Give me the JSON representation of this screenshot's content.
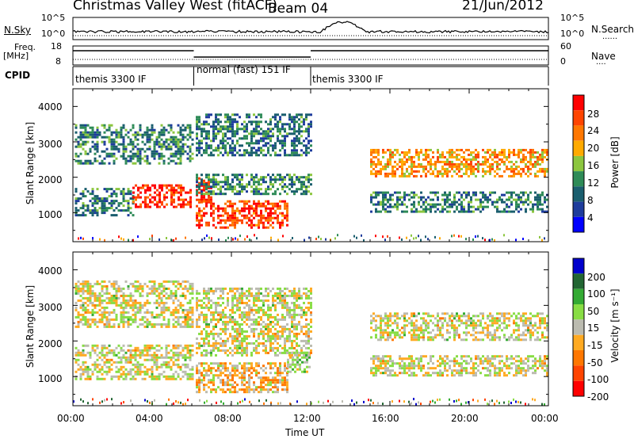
{
  "header": {
    "station_title": "Christmas Valley West (fitACF)",
    "beam": "Beam 04",
    "date": "21/Jun/2012"
  },
  "summary": {
    "nsky_label": "N.Sky",
    "nsearch_label": "N.Search",
    "noise_ticks_left": [
      "10^5",
      "10^0"
    ],
    "noise_ticks_right": [
      "10^5",
      "10^0"
    ],
    "freq_label": "Freq.",
    "freq_unit": "[MHz]",
    "freq_ticks": [
      "18",
      "8"
    ],
    "nave_label": "Nave",
    "nave_ticks": [
      "60",
      "0"
    ],
    "cpid_label": "CPID",
    "cpid_segments": [
      {
        "label": "themis 3300 IF",
        "start_hour": 0.0,
        "end_hour": 6.1
      },
      {
        "label": "normal (fast) 151 IF",
        "start_hour": 6.1,
        "end_hour": 12.0
      },
      {
        "label": "themis 3300 IF",
        "start_hour": 12.0,
        "end_hour": 24.0
      }
    ]
  },
  "axes": {
    "ylabel": "Slant Range [km]",
    "xlabel": "Time UT",
    "x_ticks": [
      "00:00",
      "04:00",
      "08:00",
      "12:00",
      "16:00",
      "20:00",
      "00:00"
    ],
    "y_ticks": [
      "1000",
      "2000",
      "3000",
      "4000"
    ]
  },
  "power_colorbar": {
    "label": "Power [dB]",
    "ticks": [
      "28",
      "24",
      "20",
      "16",
      "12",
      "8",
      "4"
    ],
    "colors": [
      "#ff0000",
      "#ff4400",
      "#ff7700",
      "#ffaa00",
      "#8cc63f",
      "#2e8b57",
      "#1a5e6e",
      "#1e3c9c",
      "#0000ff"
    ]
  },
  "velocity_colorbar": {
    "label": "Velocity [m s⁻¹]",
    "ticks": [
      "200",
      "100",
      "50",
      "15",
      "-15",
      "-50",
      "-100",
      "-200"
    ],
    "colors": [
      "#0000cc",
      "#226633",
      "#33aa33",
      "#88dd44",
      "#bbbbb0",
      "#ffaa22",
      "#ff7700",
      "#ff4400",
      "#ff0000"
    ]
  },
  "chart_data": [
    {
      "type": "heatmap",
      "title": "Power",
      "xlabel": "Time UT",
      "ylabel": "Slant Range [km]",
      "xlim": [
        0,
        24
      ],
      "ylim": [
        180,
        4500
      ],
      "zlabel": "Power [dB]",
      "zlim": [
        0,
        30
      ],
      "regions": [
        {
          "t0": 0.1,
          "t1": 6.0,
          "r0": 2400,
          "r1": 3500,
          "z": 10
        },
        {
          "t0": 0.1,
          "t1": 3.0,
          "r0": 900,
          "r1": 1700,
          "z": 10
        },
        {
          "t0": 3.0,
          "t1": 6.0,
          "r0": 1150,
          "r1": 1800,
          "z": 27
        },
        {
          "t0": 6.2,
          "t1": 7.0,
          "r0": 1300,
          "r1": 2000,
          "z": 28
        },
        {
          "t0": 6.2,
          "t1": 10.8,
          "r0": 550,
          "r1": 1350,
          "z": 25
        },
        {
          "t0": 6.2,
          "t1": 12.0,
          "r0": 1500,
          "r1": 2100,
          "z": 11
        },
        {
          "t0": 6.2,
          "t1": 12.0,
          "r0": 2600,
          "r1": 3800,
          "z": 9
        },
        {
          "t0": 15.0,
          "t1": 24.0,
          "r0": 1050,
          "r1": 1600,
          "z": 10
        },
        {
          "t0": 15.0,
          "t1": 24.0,
          "r0": 2000,
          "r1": 2800,
          "z": 20
        }
      ]
    },
    {
      "type": "heatmap",
      "title": "Velocity",
      "xlabel": "Time UT",
      "ylabel": "Slant Range [km]",
      "xlim": [
        0,
        24
      ],
      "ylim": [
        180,
        4500
      ],
      "zlabel": "Velocity [m s^-1]",
      "zlim": [
        -250,
        250
      ],
      "regions": [
        {
          "t0": 0.1,
          "t1": 6.0,
          "r0": 2400,
          "r1": 3700,
          "z": 0
        },
        {
          "t0": 0.1,
          "t1": 6.0,
          "r0": 900,
          "r1": 1900,
          "z": 0
        },
        {
          "t0": 6.2,
          "t1": 10.8,
          "r0": 550,
          "r1": 1400,
          "z": -40
        },
        {
          "t0": 10.8,
          "t1": 12.0,
          "r0": 1100,
          "r1": 1700,
          "z": 40
        },
        {
          "t0": 6.2,
          "t1": 12.0,
          "r0": 1600,
          "r1": 3500,
          "z": 0
        },
        {
          "t0": 15.0,
          "t1": 24.0,
          "r0": 1050,
          "r1": 1600,
          "z": 0
        },
        {
          "t0": 15.0,
          "t1": 24.0,
          "r0": 2000,
          "r1": 2800,
          "z": 0
        }
      ]
    }
  ]
}
